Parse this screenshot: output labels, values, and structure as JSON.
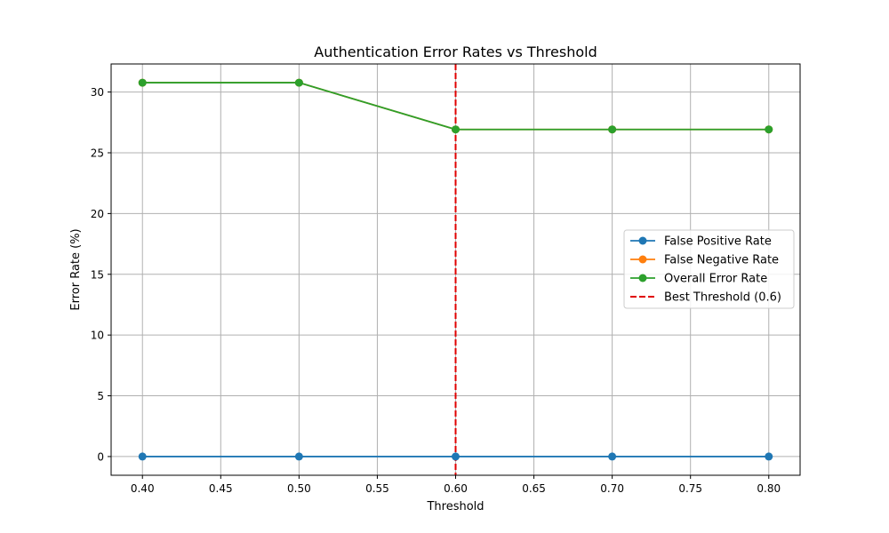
{
  "chart_data": {
    "type": "line",
    "title": "Authentication Error Rates vs Threshold",
    "xlabel": "Threshold",
    "ylabel": "Error Rate (%)",
    "x": [
      0.4,
      0.5,
      0.6,
      0.7,
      0.8
    ],
    "xlim": [
      0.38,
      0.82
    ],
    "ylim": [
      -1.54,
      32.31
    ],
    "xticks": [
      0.4,
      0.45,
      0.5,
      0.55,
      0.6,
      0.65,
      0.7,
      0.75,
      0.8
    ],
    "xtick_labels": [
      "0.40",
      "0.45",
      "0.50",
      "0.55",
      "0.60",
      "0.65",
      "0.70",
      "0.75",
      "0.80"
    ],
    "yticks": [
      0,
      5,
      10,
      15,
      20,
      25,
      30
    ],
    "ytick_labels": [
      "0",
      "5",
      "10",
      "15",
      "20",
      "25",
      "30"
    ],
    "grid": true,
    "legend_position": "center-right",
    "series": [
      {
        "name": "False Positive Rate",
        "color": "#1f77b4",
        "marker": "circle",
        "values": [
          0,
          0,
          0,
          0,
          0
        ]
      },
      {
        "name": "False Negative Rate",
        "color": "#ff7f0e",
        "marker": "circle",
        "values": [
          30.77,
          30.77,
          26.92,
          26.92,
          26.92
        ]
      },
      {
        "name": "Overall Error Rate",
        "color": "#2ca02c",
        "marker": "circle",
        "values": [
          30.77,
          30.77,
          26.92,
          26.92,
          26.92
        ]
      }
    ],
    "vlines": [
      {
        "name": "Best Threshold (0.6)",
        "x": 0.6,
        "color": "#e00000",
        "style": "dashed"
      }
    ]
  }
}
